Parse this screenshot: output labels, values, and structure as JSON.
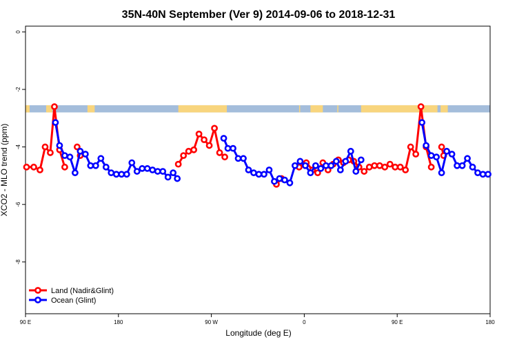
{
  "chart_data": {
    "type": "line",
    "title": "35N-40N September (Ver 9)   2014-09-06 to 2018-12-31",
    "xlabel": "Longitude (deg E)",
    "ylabel": "XCO2 - MLO trend (ppm)",
    "xlim": [
      90,
      540
    ],
    "ylim": [
      -9.8,
      0.2
    ],
    "x_ticks": [
      {
        "value": 90,
        "label": "90 E"
      },
      {
        "value": 180,
        "label": "180"
      },
      {
        "value": 270,
        "label": "90 W"
      },
      {
        "value": 360,
        "label": "0"
      },
      {
        "value": 450,
        "label": "90 E"
      },
      {
        "value": 540,
        "label": "180"
      }
    ],
    "y_ticks": [
      {
        "value": 0,
        "label": "0"
      },
      {
        "value": -2,
        "label": "-2"
      },
      {
        "value": -4,
        "label": "-4"
      },
      {
        "value": -6,
        "label": "-6"
      },
      {
        "value": -8,
        "label": "-8"
      }
    ],
    "grid": false,
    "legend_position": "bottom-left",
    "land_ocean_strip": {
      "y_range": [
        -2.55,
        -2.8
      ],
      "ocean_color": "#a4bddb",
      "land_color": "#f8d57e",
      "land_segments": [
        [
          90,
          94
        ],
        [
          110,
          116
        ],
        [
          150,
          157
        ],
        [
          238,
          285
        ],
        [
          355,
          356
        ],
        [
          366,
          378
        ],
        [
          392,
          393
        ],
        [
          415,
          489
        ],
        [
          492,
          499
        ]
      ]
    },
    "series": [
      {
        "name": "Land (Nadir&Glint)",
        "color": "#ff0000",
        "segments": [
          [
            [
              91,
              -4.7
            ],
            [
              98,
              -4.7
            ],
            [
              104,
              -4.8
            ],
            [
              109,
              -4.0
            ],
            [
              114,
              -4.2
            ],
            [
              118,
              -2.6
            ],
            [
              123,
              -4.1
            ],
            [
              128,
              -4.7
            ]
          ],
          [
            [
              140,
              -4.0
            ],
            [
              143,
              -4.3
            ]
          ],
          [
            [
              238,
              -4.6
            ],
            [
              243,
              -4.3
            ],
            [
              248,
              -4.15
            ],
            [
              253,
              -4.1
            ],
            [
              258,
              -3.55
            ],
            [
              263,
              -3.75
            ],
            [
              268,
              -3.95
            ],
            [
              273,
              -3.35
            ],
            [
              278,
              -4.2
            ],
            [
              283,
              -4.35
            ]
          ],
          [
            [
              333,
              -5.3
            ],
            [
              338,
              -5.1
            ]
          ],
          [
            [
              355,
              -4.7
            ],
            [
              362,
              -4.55
            ],
            [
              368,
              -4.8
            ],
            [
              373,
              -4.9
            ],
            [
              378,
              -4.55
            ],
            [
              383,
              -4.8
            ],
            [
              388,
              -4.6
            ],
            [
              393,
              -4.45
            ],
            [
              398,
              -4.55
            ],
            [
              403,
              -4.45
            ],
            [
              408,
              -4.5
            ],
            [
              413,
              -4.7
            ],
            [
              418,
              -4.85
            ],
            [
              423,
              -4.7
            ],
            [
              428,
              -4.65
            ],
            [
              433,
              -4.65
            ],
            [
              438,
              -4.7
            ],
            [
              443,
              -4.6
            ],
            [
              448,
              -4.7
            ],
            [
              453,
              -4.7
            ],
            [
              458,
              -4.8
            ],
            [
              463,
              -4.0
            ],
            [
              468,
              -4.25
            ],
            [
              473,
              -2.6
            ],
            [
              478,
              -4.0
            ],
            [
              483,
              -4.7
            ]
          ],
          [
            [
              493,
              -4.0
            ],
            [
              495,
              -4.3
            ]
          ]
        ]
      },
      {
        "name": "Ocean (Glint)",
        "color": "#0000ff",
        "segments": [
          [
            [
              119,
              -3.15
            ],
            [
              123,
              -3.95
            ],
            [
              128,
              -4.3
            ],
            [
              133,
              -4.35
            ],
            [
              138,
              -4.9
            ],
            [
              143,
              -4.15
            ],
            [
              148,
              -4.25
            ],
            [
              153,
              -4.65
            ],
            [
              158,
              -4.65
            ],
            [
              163,
              -4.4
            ],
            [
              168,
              -4.7
            ],
            [
              173,
              -4.9
            ],
            [
              178,
              -4.95
            ],
            [
              183,
              -4.95
            ],
            [
              188,
              -4.95
            ],
            [
              193,
              -4.55
            ],
            [
              198,
              -4.85
            ],
            [
              203,
              -4.75
            ],
            [
              208,
              -4.75
            ],
            [
              213,
              -4.8
            ],
            [
              218,
              -4.85
            ],
            [
              223,
              -4.85
            ],
            [
              228,
              -5.05
            ],
            [
              233,
              -4.9
            ],
            [
              237,
              -5.1
            ]
          ],
          [
            [
              282,
              -3.7
            ],
            [
              286,
              -4.05
            ],
            [
              291,
              -4.05
            ],
            [
              296,
              -4.4
            ],
            [
              301,
              -4.4
            ],
            [
              306,
              -4.8
            ],
            [
              311,
              -4.9
            ],
            [
              316,
              -4.95
            ],
            [
              321,
              -4.95
            ],
            [
              326,
              -4.8
            ],
            [
              331,
              -5.2
            ],
            [
              336,
              -5.1
            ],
            [
              341,
              -5.15
            ],
            [
              346,
              -5.25
            ],
            [
              351,
              -4.65
            ],
            [
              356,
              -4.5
            ],
            [
              361,
              -4.65
            ],
            [
              366,
              -4.9
            ],
            [
              371,
              -4.65
            ],
            [
              376,
              -4.75
            ],
            [
              381,
              -4.65
            ],
            [
              386,
              -4.65
            ],
            [
              391,
              -4.5
            ],
            [
              395,
              -4.8
            ],
            [
              400,
              -4.5
            ],
            [
              405,
              -4.15
            ],
            [
              410,
              -4.85
            ],
            [
              415,
              -4.45
            ]
          ],
          [
            [
              474,
              -3.15
            ],
            [
              478,
              -3.95
            ],
            [
              483,
              -4.3
            ],
            [
              488,
              -4.35
            ],
            [
              493,
              -4.9
            ],
            [
              498,
              -4.15
            ],
            [
              503,
              -4.25
            ],
            [
              508,
              -4.65
            ],
            [
              513,
              -4.65
            ],
            [
              518,
              -4.4
            ],
            [
              523,
              -4.7
            ],
            [
              528,
              -4.9
            ],
            [
              533,
              -4.95
            ],
            [
              538,
              -4.95
            ]
          ]
        ]
      }
    ]
  }
}
